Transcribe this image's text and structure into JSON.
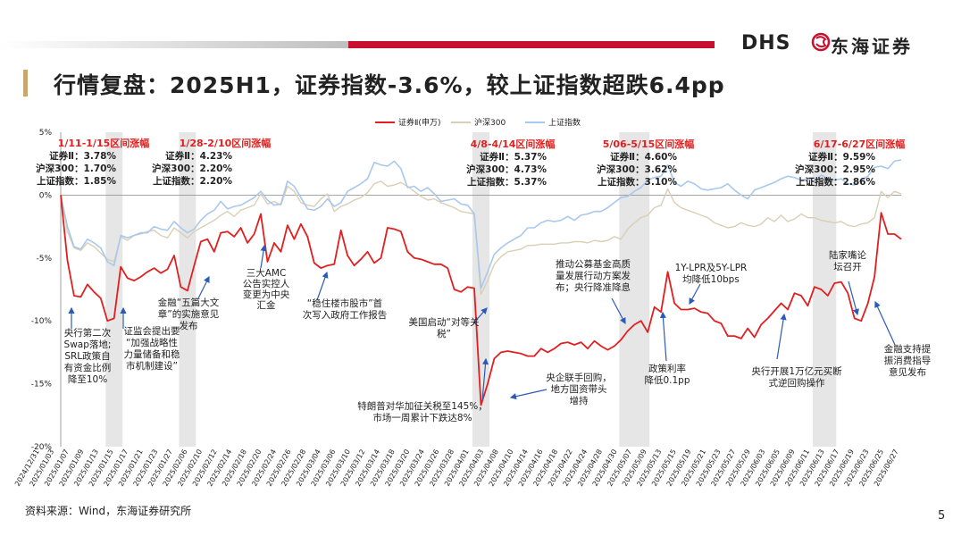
{
  "header": {
    "brand_en": "DHS",
    "brand_cn": "东海证券",
    "title": "行情复盘：2025H1，证券指数-3.6%，较上证指数超跌6.4pp"
  },
  "footer": {
    "source": "资料来源：Wind，东海证券研究所",
    "page_number": "5"
  },
  "colors": {
    "sec": "#e02020",
    "hs300": "#d9cfb4",
    "sh": "#a9c8ee",
    "accent": "#c8102e",
    "band": "#e6e6e6",
    "arrow": "#2b5bb8"
  },
  "chart_data": {
    "type": "line",
    "title": "",
    "ylabel": "",
    "xlabel": "",
    "ylim": [
      -20,
      5
    ],
    "yticks": [
      "5%",
      "0%",
      "-5%",
      "-10%",
      "-15%",
      "-20%"
    ],
    "ytick_values": [
      5,
      0,
      -5,
      -10,
      -15,
      -20
    ],
    "legend": [
      "证券Ⅱ(申万)",
      "沪深300",
      "上证指数"
    ],
    "legend_position": "top-center",
    "xtick_labels": [
      "2024/12/31",
      "2025/01/03",
      "2025/01/07",
      "2025/01/09",
      "2025/01/13",
      "2025/01/15",
      "2025/01/17",
      "2025/01/21",
      "2025/01/23",
      "2025/01/27",
      "2025/02/06",
      "2025/02/10",
      "2025/02/12",
      "2025/02/14",
      "2025/02/18",
      "2025/02/20",
      "2025/02/24",
      "2025/02/26",
      "2025/02/28",
      "2025/03/04",
      "2025/03/06",
      "2025/03/10",
      "2025/03/12",
      "2025/03/14",
      "2025/03/18",
      "2025/03/20",
      "2025/03/24",
      "2025/03/26",
      "2025/03/28",
      "2025/04/01",
      "2025/04/03",
      "2025/04/08",
      "2025/04/10",
      "2025/04/14",
      "2025/04/16",
      "2025/04/18",
      "2025/04/22",
      "2025/04/24",
      "2025/04/28",
      "2025/04/30",
      "2025/05/07",
      "2025/05/09",
      "2025/05/13",
      "2025/05/15",
      "2025/05/19",
      "2025/05/21",
      "2025/05/23",
      "2025/05/27",
      "2025/05/29",
      "2025/06/03",
      "2025/06/05",
      "2025/06/09",
      "2025/06/11",
      "2025/06/13",
      "2025/06/17",
      "2025/06/19",
      "2025/06/23",
      "2025/06/25",
      "2025/06/27"
    ],
    "series": [
      {
        "name": "证券Ⅱ(申万)",
        "values": [
          0,
          -5.2,
          -8,
          -8.1,
          -7.1,
          -7.7,
          -8.2,
          -10,
          -9.8,
          -5.7,
          -6.6,
          -6.8,
          -6.5,
          -6.1,
          -5.8,
          -6.2,
          -5.9,
          -4.8,
          -7.3,
          -7.6,
          -5.6,
          -3.7,
          -3.5,
          -4.5,
          -3,
          -2.9,
          -3.3,
          -2.6,
          -3.8,
          -3.1,
          -1.5,
          -5.3,
          -3.8,
          -4.5,
          -2.4,
          -3.5,
          -2.3,
          -3.3,
          -5.4,
          -5.8,
          -5.6,
          -5.5,
          -2.8,
          -4.8,
          -5.6,
          -5.1,
          -4.5,
          -5.4,
          -5,
          -2.6,
          -2.7,
          -2.9,
          -4.5,
          -5,
          -5.1,
          -5.3,
          -5.5,
          -5.5,
          -5.8,
          -7.5,
          -7.7,
          -7.3,
          -7.4,
          -16.7,
          -15,
          -13,
          -12.5,
          -12.4,
          -12.5,
          -12.6,
          -12.8,
          -12.8,
          -12.2,
          -12.5,
          -12.2,
          -11.8,
          -11.7,
          -11.9,
          -11.7,
          -12.2,
          -11.6,
          -12,
          -12.3,
          -12,
          -11.5,
          -10.8,
          -10.3,
          -10,
          -10.9,
          -8.9,
          -9.3,
          -6.1,
          -8.6,
          -9.1,
          -9.1,
          -9,
          -9.3,
          -9.4,
          -10,
          -10.2,
          -11.2,
          -11.2,
          -11.4,
          -10.6,
          -11.3,
          -10.3,
          -9.8,
          -9.2,
          -8.6,
          -9.1,
          -7.8,
          -8,
          -8.8,
          -7.3,
          -7.5,
          -8,
          -7,
          -6.9,
          -7.8,
          -9.8,
          -10,
          -8.6,
          -6.5,
          -1.4,
          -3.1,
          -3.1,
          -3.5
        ]
      },
      {
        "name": "沪深300",
        "values": [
          0,
          -2.9,
          -4.2,
          -4.4,
          -3.8,
          -4.1,
          -4.6,
          -5.1,
          -5.3,
          -3.3,
          -3.6,
          -3.2,
          -3.1,
          -2.9,
          -2.8,
          -3.2,
          -3.4,
          -2.6,
          -3,
          -3.4,
          -2.9,
          -2.6,
          -2.3,
          -2,
          -1.6,
          -1.3,
          -1.7,
          -1.2,
          -1,
          -0.8,
          0.1,
          -0.7,
          -0.5,
          -0.8,
          0.7,
          0.3,
          -0.6,
          -0.8,
          -0.9,
          -0.3,
          0.1,
          -1.3,
          -0.9,
          -0.7,
          -0.4,
          -0.2,
          0.2,
          0.9,
          1.1,
          0.7,
          0.8,
          1,
          0.7,
          0.3,
          -0.1,
          -0.4,
          -0.3,
          -0.6,
          -0.8,
          -1,
          -1.3,
          -1.4,
          -1.5,
          -7.9,
          -6.8,
          -5.5,
          -4.9,
          -4.5,
          -4.4,
          -4.3,
          -4,
          -4,
          -3.9,
          -3.9,
          -3.9,
          -3.8,
          -3.8,
          -3.7,
          -3.7,
          -3.8,
          -3.6,
          -3.7,
          -3.6,
          -3.3,
          -3.5,
          -2.7,
          -2.2,
          -1.8,
          -1.6,
          -1,
          -0.8,
          0.5,
          -0.6,
          -1,
          -1.2,
          -1.4,
          -1.6,
          -1.8,
          -2.2,
          -2.4,
          -2.6,
          -2.5,
          -2.2,
          -2.4,
          -2.5,
          -2.3,
          -1.8,
          -2.1,
          -1.6,
          -2.1,
          -1.9,
          -1.5,
          -1.8,
          -1.8,
          -2,
          -2.1,
          -2.2,
          -2.1,
          -2.4,
          -2.5,
          -2.3,
          -2.2,
          -1.8,
          0.3,
          -0.2,
          0.3,
          0.1
        ]
      },
      {
        "name": "上证指数",
        "values": [
          0,
          -2.5,
          -4.1,
          -4.3,
          -3.5,
          -3.8,
          -4.2,
          -5.3,
          -5.6,
          -3.2,
          -3.4,
          -3.2,
          -3,
          -3,
          -2.5,
          -2.7,
          -2.8,
          -2.1,
          -2.6,
          -3,
          -2.7,
          -2,
          -1.5,
          -1.2,
          -0.5,
          -1.1,
          -0.9,
          -0.8,
          -0.5,
          -0.2,
          0.3,
          -0.4,
          -0.8,
          -0.7,
          1.1,
          0.7,
          -0.2,
          -1.1,
          -1.2,
          -0.9,
          -0.3,
          -0.9,
          -0.6,
          0.3,
          0.6,
          0.9,
          1.3,
          2.6,
          2.4,
          2.3,
          2.7,
          2.1,
          0.6,
          0.7,
          0.3,
          0.6,
          0.1,
          -0.5,
          -0.4,
          -0.3,
          -0.7,
          -0.8,
          -1.5,
          -7.4,
          -6.1,
          -4.7,
          -4.2,
          -3.8,
          -3.5,
          -3.2,
          -2.6,
          -2.6,
          -2.2,
          -2,
          -2.1,
          -2,
          -1.7,
          -2,
          -1.6,
          -1.5,
          -1.3,
          -1.3,
          -1,
          -0.6,
          -0.2,
          -0.1,
          0.3,
          0.6,
          1.2,
          1.4,
          1.5,
          2.4,
          1,
          0.7,
          1.1,
          0.9,
          0.5,
          0.4,
          0.5,
          0.6,
          0.9,
          0.4,
          0,
          -0.3,
          0.4,
          0.6,
          0.8,
          1,
          1.3,
          1.5,
          1.4,
          1.2,
          1.3,
          1.1,
          1.6,
          1.3,
          1.2,
          1.3,
          0.9,
          0.8,
          1.2,
          1.5,
          2.2,
          2.3,
          2.1,
          2.7,
          2.8
        ]
      }
    ],
    "bands": [
      [
        7,
        9
      ],
      [
        18,
        20
      ],
      [
        62,
        64
      ],
      [
        84,
        88
      ],
      [
        113,
        116
      ]
    ],
    "band_annotations": [
      {
        "period": "1/11-1/15区间涨幅",
        "lines": [
          "证券Ⅱ：3.78%",
          "沪深300：1.70%",
          "上证指数：1.85%"
        ]
      },
      {
        "period": "1/28-2/10区间涨幅",
        "lines": [
          "证券Ⅱ：4.23%",
          "沪深300：2.20%",
          "上证指数：2.20%"
        ]
      },
      {
        "period": "4/8-4/14区间涨幅",
        "lines": [
          "证券Ⅱ：5.37%",
          "沪深300：4.73%",
          "上证指数：5.37%"
        ]
      },
      {
        "period": "5/06-5/15区间涨幅",
        "lines": [
          "证券Ⅱ：4.60%",
          "沪深300：3.62%",
          "上证指数：3.10%"
        ]
      },
      {
        "period": "6/17-6/27区间涨幅",
        "lines": [
          "证券Ⅱ：9.59%",
          "沪深300：2.95%",
          "上证指数：2.86%"
        ]
      }
    ],
    "event_annotations": [
      {
        "lines": [
          "央行第二次",
          "Swap落地;",
          "SRL政策自",
          "有资金比例",
          "降至10%"
        ]
      },
      {
        "lines": [
          "证监会提出要",
          "“加强战略性",
          "力量储备和稳",
          "市机制建设”"
        ]
      },
      {
        "lines": [
          "金融“五篇大文",
          "章”的实施意见",
          "发布"
        ]
      },
      {
        "lines": [
          "三大AMC",
          "公告实控人",
          "变更为中央",
          "汇金"
        ]
      },
      {
        "lines": [
          "“稳住楼市股市”首",
          "次写入政府工作报告"
        ]
      },
      {
        "lines": [
          "美国启动“对等关",
          "税”"
        ]
      },
      {
        "lines": [
          "特朗普对华加征关税至145%，",
          "市场一周累计下跌达8%"
        ]
      },
      {
        "lines": [
          "央企联手回购，",
          "地方国资带头",
          "增持"
        ]
      },
      {
        "lines": [
          "推动公募基金高质",
          "量发展行动方案发",
          "布；央行降准降息"
        ]
      },
      {
        "lines": [
          "政策利率",
          "降低0.1pp"
        ]
      },
      {
        "lines": [
          "1Y-LPR及5Y-LPR",
          "均降低10bps"
        ]
      },
      {
        "lines": [
          "央行开展1万亿元买断",
          "式逆回购操作"
        ]
      },
      {
        "lines": [
          "陆家嘴论",
          "坛召开"
        ]
      },
      {
        "lines": [
          "金融支持提",
          "振消费指导",
          "意见发布"
        ]
      }
    ]
  }
}
